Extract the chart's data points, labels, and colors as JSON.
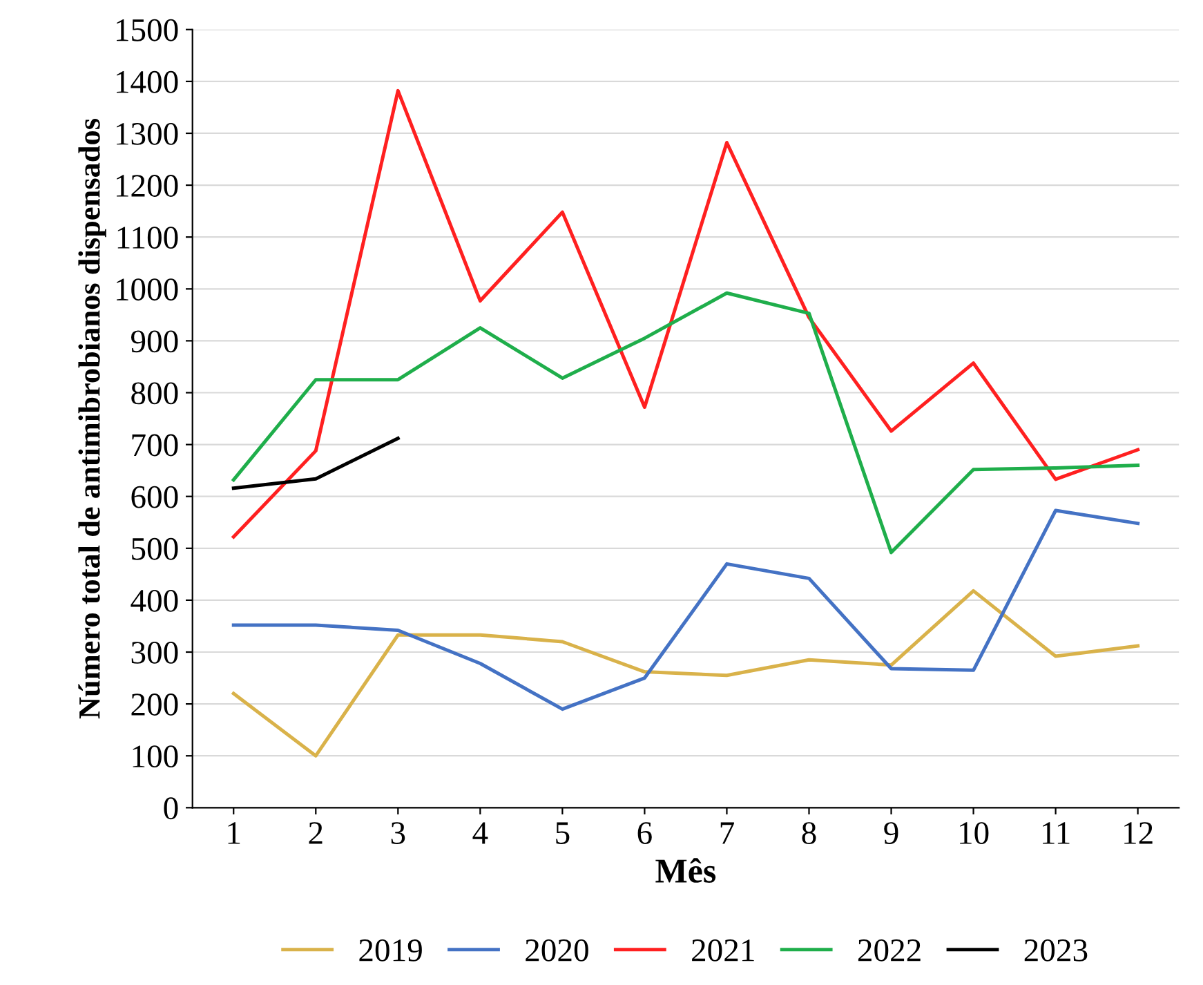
{
  "chart_data": {
    "type": "line",
    "xlabel": "Mês",
    "ylabel": "Número total de antimibrobianos dispensados",
    "categories": [
      "1",
      "2",
      "3",
      "4",
      "5",
      "6",
      "7",
      "8",
      "9",
      "10",
      "11",
      "12"
    ],
    "series": [
      {
        "name": "2019",
        "color": "#d9b24a",
        "values": [
          220,
          100,
          333,
          333,
          320,
          262,
          255,
          285,
          275,
          418,
          292,
          312
        ]
      },
      {
        "name": "2020",
        "color": "#4472c4",
        "values": [
          352,
          352,
          342,
          278,
          190,
          250,
          470,
          442,
          268,
          265,
          573,
          548
        ]
      },
      {
        "name": "2021",
        "color": "#ff2020",
        "values": [
          522,
          688,
          1382,
          977,
          1148,
          772,
          1282,
          945,
          726,
          857,
          633,
          690
        ]
      },
      {
        "name": "2022",
        "color": "#1fae4b",
        "values": [
          632,
          825,
          825,
          925,
          828,
          905,
          992,
          953,
          492,
          652,
          655,
          660
        ]
      },
      {
        "name": "2023",
        "color": "#000000",
        "values": [
          616,
          634,
          712,
          null,
          null,
          null,
          null,
          null,
          null,
          null,
          null,
          null
        ]
      }
    ],
    "ylim": [
      0,
      1500
    ],
    "yticks": [
      0,
      100,
      200,
      300,
      400,
      500,
      600,
      700,
      800,
      900,
      1000,
      1100,
      1200,
      1300,
      1400,
      1500
    ],
    "grid": "y",
    "legend": "bottom",
    "marker": "none",
    "line_style": "solid"
  }
}
